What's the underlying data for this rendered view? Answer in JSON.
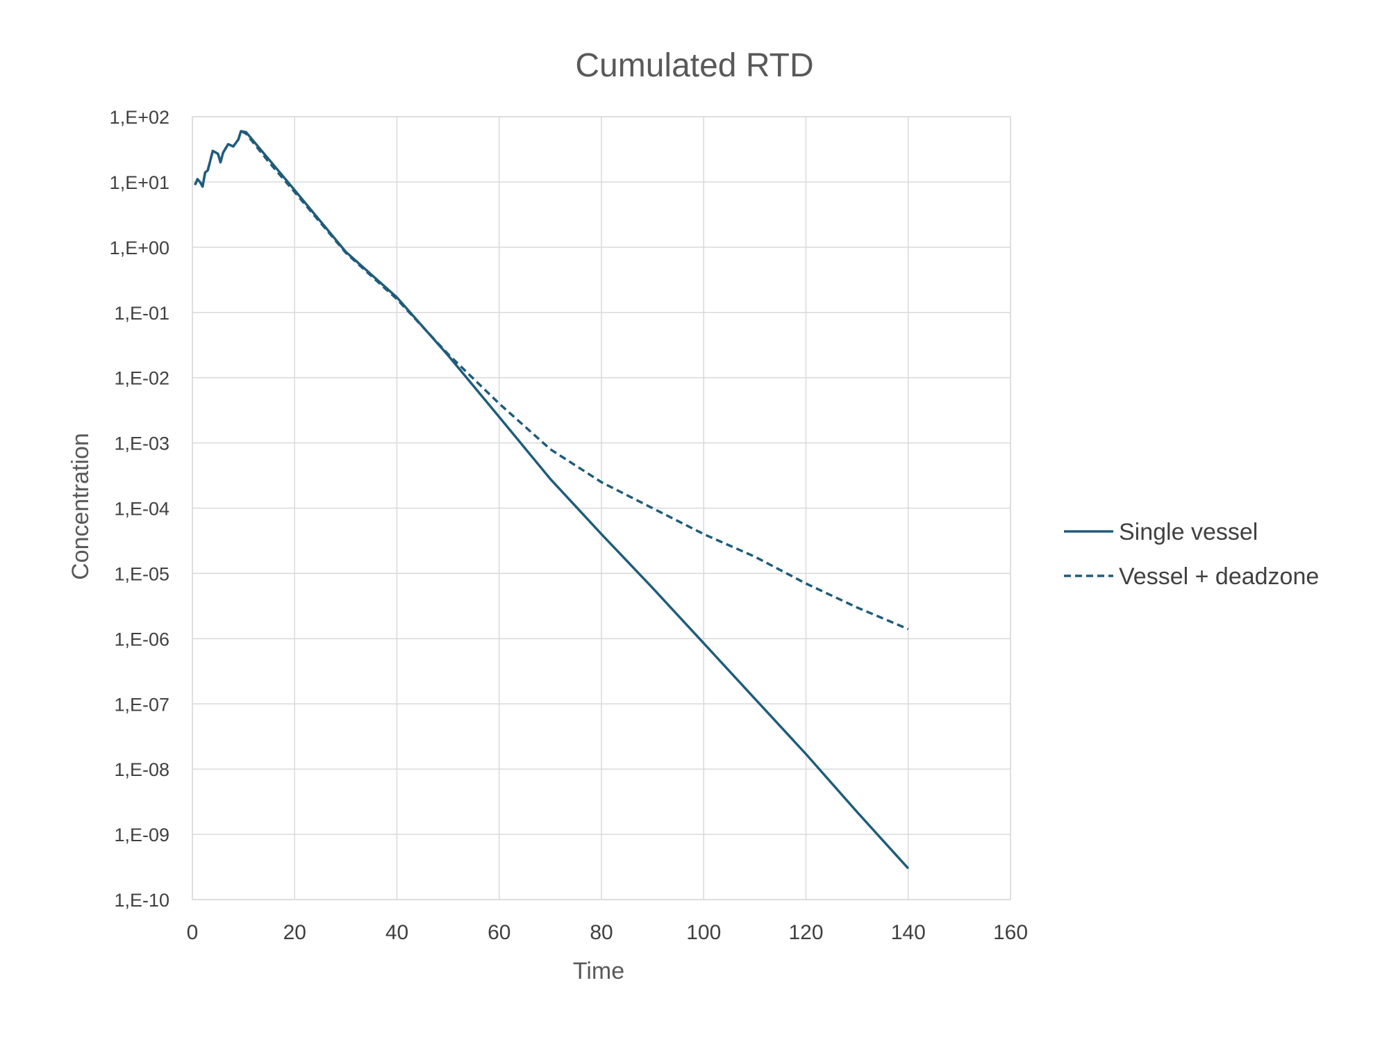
{
  "chart_data": {
    "type": "line",
    "title": "Cumulated RTD",
    "xlabel": "Time",
    "ylabel": "Concentration",
    "xlim": [
      0,
      160
    ],
    "ylim": [
      1e-10,
      100
    ],
    "yscale": "log",
    "x_ticks": [
      "0",
      "20",
      "40",
      "60",
      "80",
      "100",
      "120",
      "140",
      "160"
    ],
    "y_ticks": [
      "1,E+02",
      "1,E+01",
      "1,E+00",
      "1,E-01",
      "1,E-02",
      "1,E-03",
      "1,E-04",
      "1,E-05",
      "1,E-06",
      "1,E-07",
      "1,E-08",
      "1,E-09",
      "1,E-10"
    ],
    "grid": true,
    "legend_position": "right",
    "series": [
      {
        "name": "Single vessel",
        "color": "#1f5c7a",
        "dash": "solid",
        "points": [
          [
            0.5,
            9
          ],
          [
            1,
            11
          ],
          [
            1.5,
            10
          ],
          [
            2,
            8.5
          ],
          [
            2.5,
            14
          ],
          [
            3,
            15
          ],
          [
            4,
            30
          ],
          [
            5,
            27
          ],
          [
            5.5,
            20
          ],
          [
            6,
            28
          ],
          [
            7,
            38
          ],
          [
            8,
            35
          ],
          [
            9,
            45
          ],
          [
            9.5,
            60
          ],
          [
            10.5,
            58
          ],
          [
            15,
            22
          ],
          [
            20,
            7.5
          ],
          [
            30,
            0.85
          ],
          [
            40,
            0.17
          ],
          [
            50,
            0.022
          ],
          [
            60,
            0.0025
          ],
          [
            70,
            0.00028
          ],
          [
            80,
            4e-05
          ],
          [
            90,
            6e-06
          ],
          [
            100,
            8.5e-07
          ],
          [
            110,
            1.2e-07
          ],
          [
            120,
            1.7e-08
          ],
          [
            130,
            2.2e-09
          ],
          [
            140,
            3e-10
          ]
        ]
      },
      {
        "name": "Vessel + deadzone",
        "color": "#1f5c7a",
        "dash": "dashed",
        "points": [
          [
            0.5,
            9
          ],
          [
            1,
            11
          ],
          [
            1.5,
            10
          ],
          [
            2,
            8.5
          ],
          [
            2.5,
            14
          ],
          [
            3,
            15
          ],
          [
            4,
            30
          ],
          [
            5,
            27
          ],
          [
            5.5,
            20
          ],
          [
            6,
            28
          ],
          [
            7,
            38
          ],
          [
            8,
            35
          ],
          [
            9,
            45
          ],
          [
            9.5,
            60
          ],
          [
            10.5,
            55
          ],
          [
            15,
            20
          ],
          [
            20,
            7
          ],
          [
            30,
            0.82
          ],
          [
            40,
            0.16
          ],
          [
            50,
            0.023
          ],
          [
            60,
            0.004
          ],
          [
            70,
            0.0008
          ],
          [
            80,
            0.00025
          ],
          [
            90,
            0.0001
          ],
          [
            100,
            4e-05
          ],
          [
            110,
            1.8e-05
          ],
          [
            120,
            7e-06
          ],
          [
            130,
            3e-06
          ],
          [
            140,
            1.4e-06
          ]
        ]
      }
    ]
  }
}
